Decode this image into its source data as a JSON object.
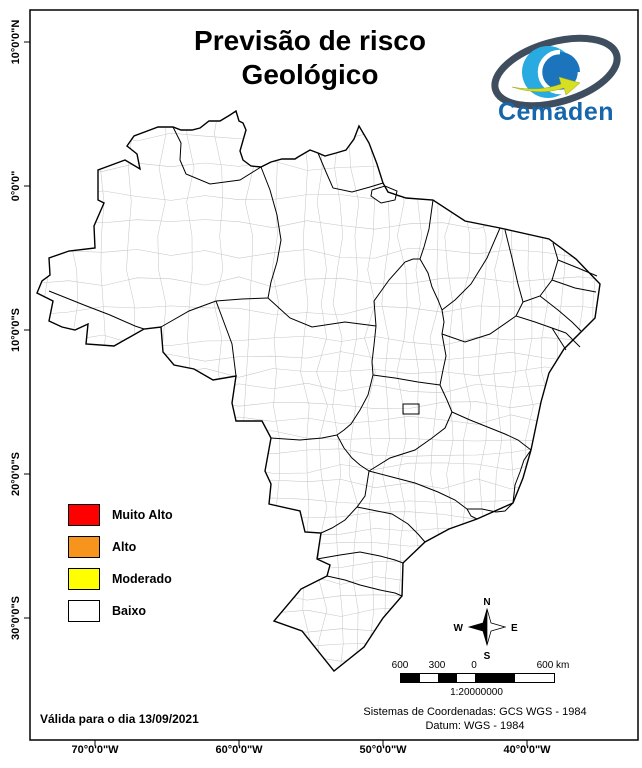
{
  "title": {
    "line1": "Previsão de risco",
    "line2": "Geológico"
  },
  "brand": {
    "name": "Cemaden",
    "color": "#1566ab"
  },
  "legend": {
    "items": [
      {
        "label": "Muito Alto",
        "color": "#ff0000"
      },
      {
        "label": "Alto",
        "color": "#f7941e"
      },
      {
        "label": "Moderado",
        "color": "#ffff00"
      },
      {
        "label": "Baixo",
        "color": "#ffffff"
      }
    ]
  },
  "compass": {
    "n": "N",
    "s": "S",
    "e": "E",
    "w": "W"
  },
  "scale_bar": {
    "labels": [
      "600",
      "300",
      "0",
      "600 km"
    ],
    "ratio": "1:20000000"
  },
  "footer": {
    "validity": "Válida para o dia 13/09/2021",
    "crs_line1": "Sistemas de Coordenadas: GCS WGS - 1984",
    "crs_line2": "Datum: WGS - 1984"
  },
  "axes": {
    "lat_labels": [
      "10°0'0\"N",
      "0°0'0\"",
      "10°0'0\"S",
      "20°0'0\"S",
      "30°0'0\"S"
    ],
    "lon_labels": [
      "70°0'0\"W",
      "60°0'0\"W",
      "50°0'0\"W",
      "40°0'0\"W"
    ]
  }
}
